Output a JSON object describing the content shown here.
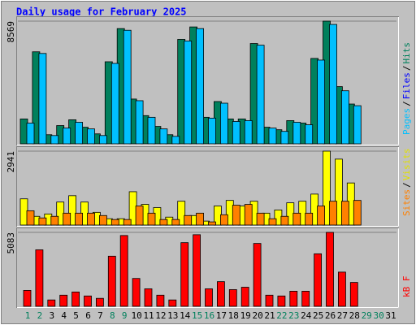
{
  "title": "Daily usage for February 2025",
  "weekend_color": "#00805c",
  "weekday_color": "#000000",
  "weekend": [
    0,
    1,
    7,
    8,
    14,
    15,
    21,
    22,
    28,
    29
  ],
  "chart_data": [
    {
      "type": "bar",
      "categories": [
        "1",
        "2",
        "3",
        "4",
        "5",
        "6",
        "7",
        "8",
        "9",
        "10",
        "11",
        "12",
        "13",
        "14",
        "15",
        "16",
        "17",
        "18",
        "19",
        "20",
        "21",
        "22",
        "23",
        "24",
        "25",
        "26",
        "27",
        "28",
        "29",
        "30",
        "31"
      ],
      "ylim": [
        0,
        8569
      ],
      "yticks": [
        8569
      ],
      "legend": [
        {
          "text": "Pages",
          "color": "#00c0ff"
        },
        {
          "text": "Files",
          "color": "#0000ff"
        },
        {
          "text": "Hits",
          "color": "#00805c"
        }
      ],
      "legend_separator": "/",
      "series": [
        {
          "name": "Hits",
          "color": "#00805c",
          "values": [
            1737,
            6427,
            637,
            1274,
            1679,
            1158,
            695,
            5732,
            8048,
            3127,
            1969,
            1216,
            637,
            7295,
            8164,
            1853,
            2953,
            1737,
            1737,
            7006,
            1158,
            984,
            1621,
            1448,
            5964,
            8569,
            3995,
            2779,
            null,
            null,
            null
          ]
        },
        {
          "name": "Pages",
          "color": "#00c0ff",
          "values": [
            1448,
            6311,
            579,
            1100,
            1505,
            1042,
            579,
            5616,
            7932,
            3011,
            1853,
            1042,
            521,
            7180,
            8048,
            1795,
            2837,
            1563,
            1621,
            6890,
            1100,
            869,
            1505,
            1332,
            5848,
            8338,
            3706,
            2663,
            null,
            null,
            null
          ]
        }
      ]
    },
    {
      "type": "bar",
      "ylim": [
        0,
        2941
      ],
      "yticks": [
        2941
      ],
      "legend": [
        {
          "text": "Sites",
          "color": "#ff8000"
        },
        {
          "text": "Visits",
          "color": "#e0e000"
        }
      ],
      "legend_separator": "/",
      "series": [
        {
          "name": "Visits",
          "color": "#ffff00",
          "values": [
            1043,
            348,
            442,
            916,
            1169,
            916,
            506,
            253,
            253,
            1327,
            822,
            695,
            316,
            948,
            379,
            158,
            758,
            980,
            758,
            948,
            474,
            600,
            885,
            948,
            1232,
            2941,
            2623,
            1675,
            null,
            null,
            null
          ]
        },
        {
          "name": "Sites",
          "color": "#ff8000",
          "values": [
            569,
            284,
            348,
            474,
            474,
            474,
            379,
            221,
            221,
            758,
            474,
            221,
            221,
            379,
            474,
            126,
            411,
            790,
            822,
            474,
            253,
            348,
            474,
            474,
            758,
            948,
            948,
            980,
            null,
            null,
            null
          ]
        }
      ]
    },
    {
      "type": "bar",
      "ylim": [
        0,
        5083
      ],
      "yticks": [
        5083
      ],
      "legend": [
        {
          "text": "kB F",
          "color": "#ff0000"
        }
      ],
      "series": [
        {
          "name": "kB F",
          "color": "#ff0000",
          "values": [
            1094,
            3884,
            438,
            766,
            985,
            711,
            547,
            3446,
            4868,
            1915,
            1203,
            766,
            438,
            4376,
            4923,
            1203,
            1696,
            1149,
            1313,
            4321,
            766,
            711,
            1039,
            1039,
            3610,
            5083,
            2352,
            1641,
            null,
            null,
            null
          ]
        }
      ]
    }
  ]
}
